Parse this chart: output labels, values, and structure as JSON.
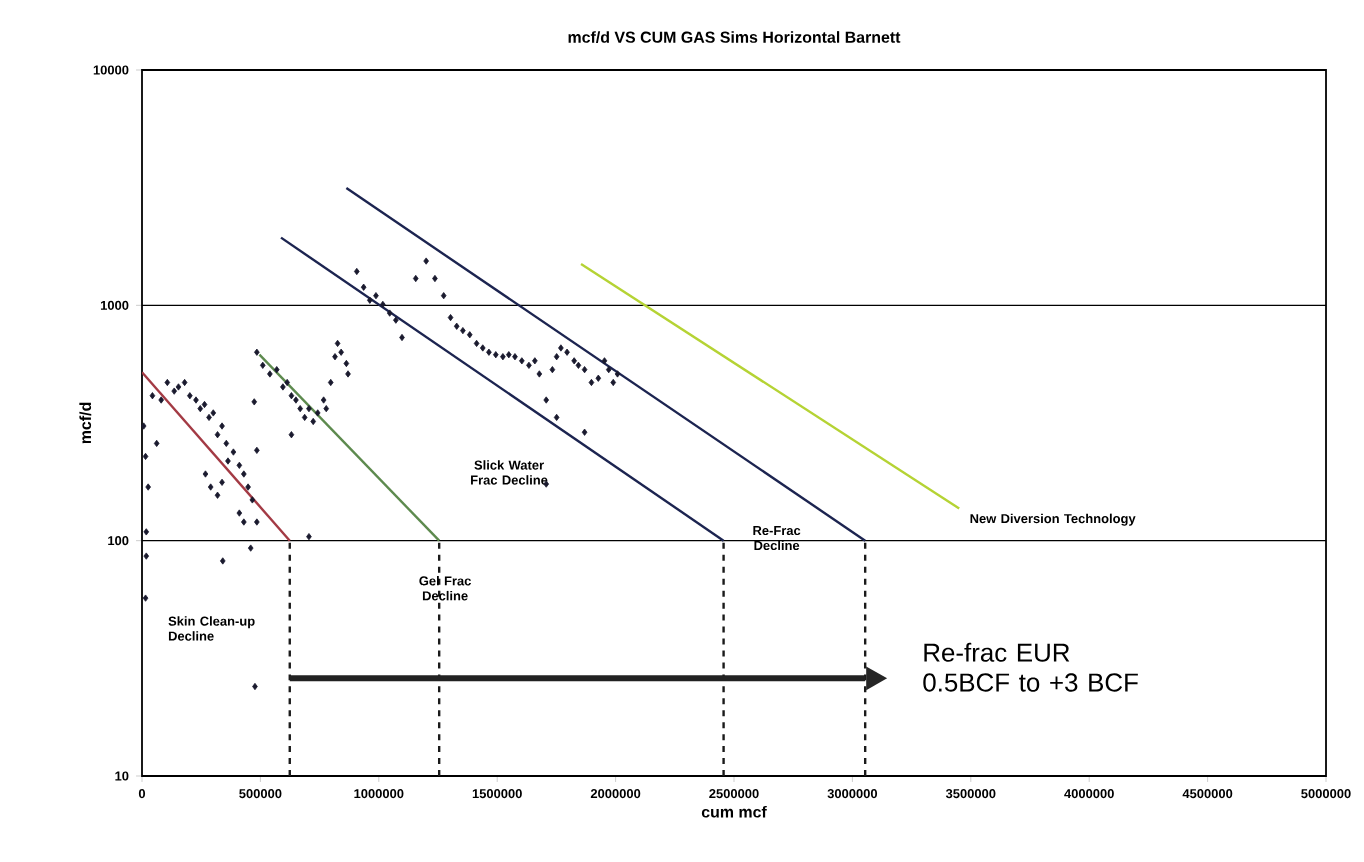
{
  "chart_data": {
    "type": "scatter",
    "title": "mcf/d VS CUM GAS Sims Horizontal Barnett",
    "xlabel": "cum mcf",
    "ylabel": "mcf/d",
    "log": "y",
    "grid": "y",
    "xlim": [
      0,
      5000000
    ],
    "ylim": [
      10,
      10000
    ],
    "xticks": [
      0,
      500000,
      1000000,
      1500000,
      2000000,
      2500000,
      3000000,
      3500000,
      4000000,
      4500000,
      5000000
    ],
    "yticks": [
      10,
      100,
      1000,
      10000
    ],
    "series": [
      {
        "marker": "diamond",
        "color": "#1a1a2e",
        "x": [
          7000,
          15000,
          26000,
          18000,
          18000,
          15000,
          44000,
          62000,
          81000,
          107000,
          136000,
          154000,
          180000,
          202000,
          228000,
          246000,
          264000,
          283000,
          301000,
          319000,
          338000,
          356000,
          363000,
          386000,
          411000,
          430000,
          268000,
          290000,
          319000,
          338000,
          448000,
          466000,
          485000,
          411000,
          430000,
          459000,
          341000,
          477000,
          705000,
          485000,
          510000,
          540000,
          569000,
          595000,
          613000,
          631000,
          650000,
          668000,
          687000,
          705000,
          723000,
          742000,
          767000,
          778000,
          631000,
          474000,
          485000,
          797000,
          815000,
          841000,
          863000,
          870000,
          826000,
          907000,
          936000,
          962000,
          988000,
          1017000,
          1046000,
          1072000,
          1098000,
          1156000,
          1200000,
          1237000,
          1274000,
          1303000,
          1329000,
          1355000,
          1384000,
          1413000,
          1439000,
          1465000,
          1494000,
          1524000,
          1549000,
          1575000,
          1604000,
          1634000,
          1659000,
          1678000,
          1707000,
          1733000,
          1751000,
          1769000,
          1795000,
          1825000,
          1843000,
          1869000,
          1898000,
          1927000,
          1953000,
          1971000,
          1990000,
          2008000,
          1751000,
          1869000,
          1707000
        ],
        "values": [
          307,
          228,
          169,
          109,
          86,
          57,
          413,
          259,
          396,
          470,
          432,
          450,
          470,
          413,
          396,
          364,
          379,
          334,
          349,
          282,
          307,
          259,
          218,
          238,
          209,
          192,
          192,
          169,
          156,
          177,
          169,
          149,
          120,
          131,
          120,
          93,
          82,
          24,
          104,
          632,
          556,
          511,
          533,
          450,
          470,
          413,
          396,
          364,
          334,
          364,
          321,
          349,
          396,
          364,
          282,
          389,
          242,
          470,
          605,
          632,
          566,
          511,
          689,
          1393,
          1194,
          1051,
          1099,
          1009,
          927,
          865,
          730,
          1300,
          1542,
          1300,
          1099,
          887,
          815,
          781,
          750,
          689,
          659,
          632,
          617,
          605,
          617,
          605,
          581,
          556,
          581,
          511,
          396,
          533,
          605,
          659,
          632,
          581,
          556,
          533,
          470,
          490,
          581,
          533,
          470,
          511,
          334,
          289,
          174
        ]
      },
      {
        "type": "line",
        "line_style": "solid",
        "color": "#a33a44",
        "x": [
          0,
          624000
        ],
        "values": [
          520,
          100
        ]
      },
      {
        "type": "line",
        "line_style": "solid",
        "color": "#5d8a4e",
        "x": [
          496000,
          1255000
        ],
        "values": [
          617,
          100
        ]
      },
      {
        "type": "line",
        "line_style": "solid",
        "color": "#1c2450",
        "x": [
          587000,
          2456000
        ],
        "values": [
          1940,
          100
        ]
      },
      {
        "type": "line",
        "line_style": "solid",
        "color": "#1c2450",
        "x": [
          863000,
          3054000
        ],
        "values": [
          3150,
          100
        ]
      },
      {
        "type": "line",
        "line_style": "solid",
        "color": "#b5d334",
        "x": [
          1854000,
          3451000
        ],
        "values": [
          1500,
          137
        ]
      },
      {
        "type": "line",
        "line_style": "dashed",
        "color": "#1a1a1a",
        "x": [
          624000,
          624000
        ],
        "values": [
          10,
          100
        ]
      },
      {
        "type": "line",
        "line_style": "dashed",
        "color": "#1a1a1a",
        "x": [
          1255000,
          1255000
        ],
        "values": [
          10,
          100
        ]
      },
      {
        "type": "line",
        "line_style": "dashed",
        "color": "#1a1a1a",
        "x": [
          2456000,
          2456000
        ],
        "values": [
          10,
          100
        ]
      },
      {
        "type": "line",
        "line_style": "dashed",
        "color": "#1a1a1a",
        "x": [
          3054000,
          3054000
        ],
        "values": [
          10,
          100
        ]
      },
      {
        "type": "line",
        "line_style": "solid",
        "color": "#222222",
        "x": [
          624000,
          3054000
        ],
        "values": [
          26,
          26
        ]
      }
    ],
    "annotations": [
      "Skin Clean-up Decline",
      "Gel Frac Decline",
      "Slick Water Frac Decline",
      "Re-Frac Decline",
      "New Diversion Technology",
      "Re-frac EUR 0.5BCF to +3 BCF"
    ]
  }
}
